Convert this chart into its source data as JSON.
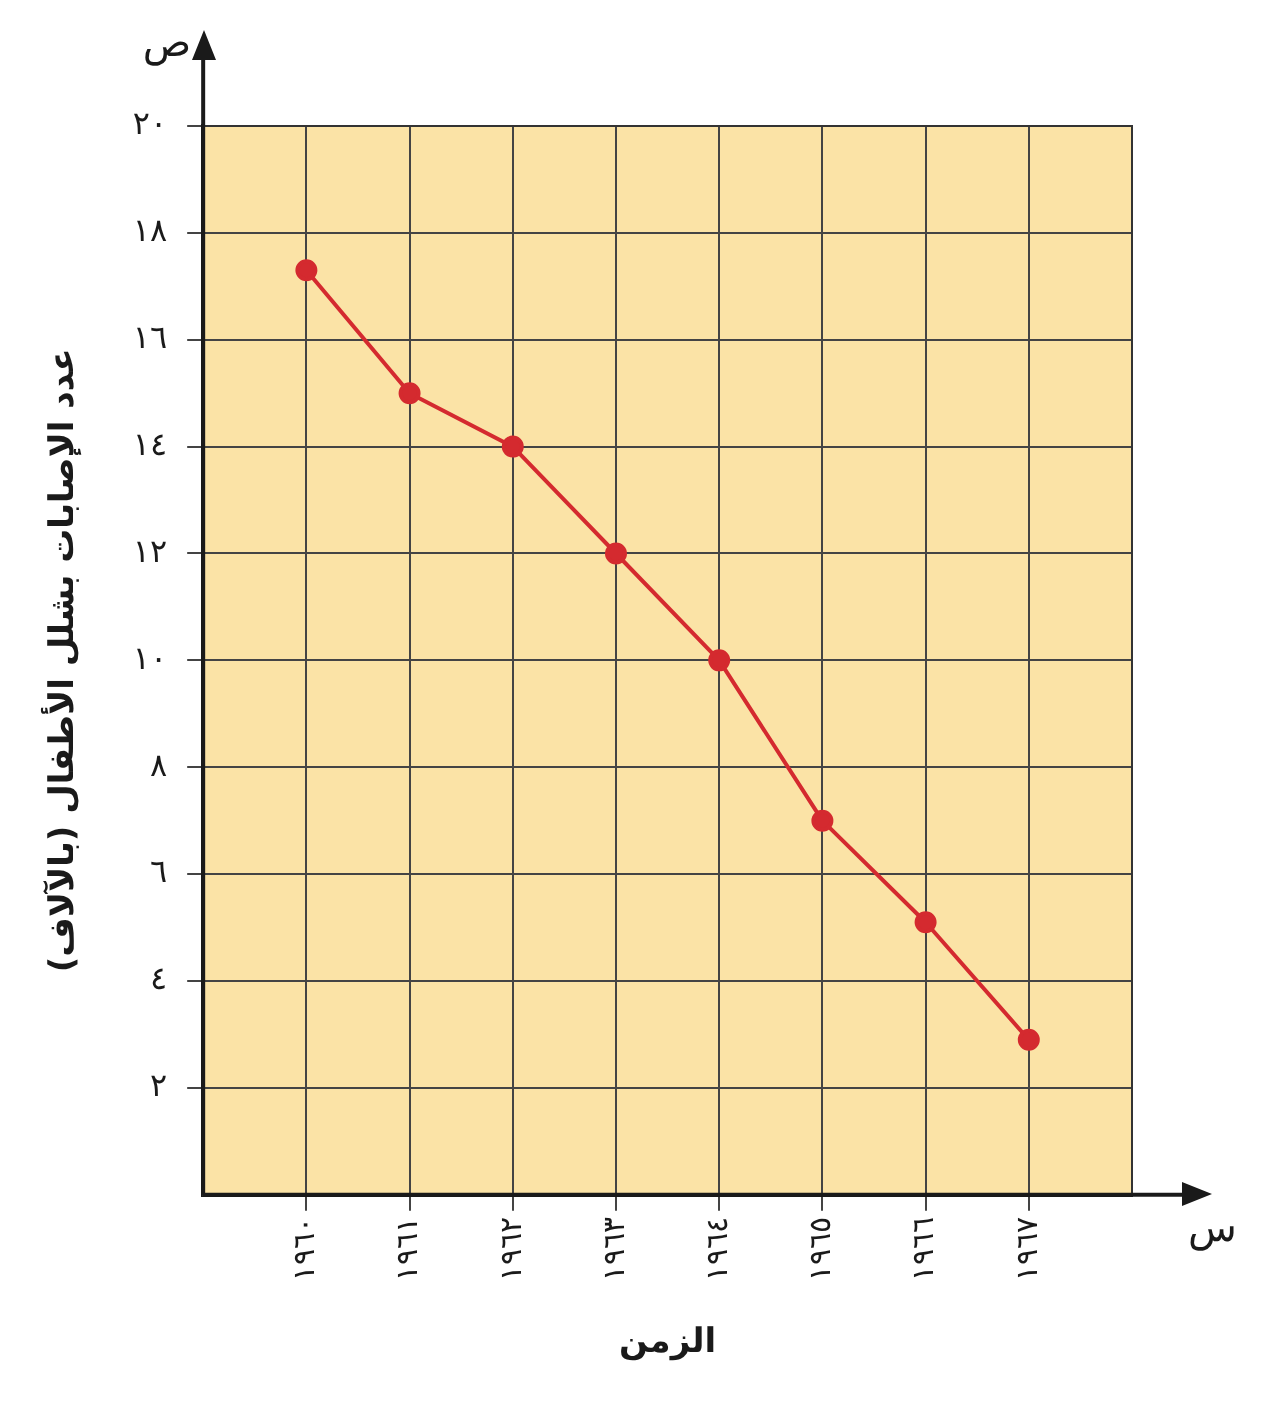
{
  "chart_data": {
    "type": "line",
    "xlabel": "الزمن",
    "ylabel": "عدد الإصابات بشلل الأطفال (بالآلاف)",
    "categories": [
      "١٩٦٠",
      "١٩٦١",
      "١٩٦٢",
      "١٩٦٣",
      "١٩٦٤",
      "١٩٦٥",
      "١٩٦٦",
      "١٩٦٧"
    ],
    "series": [
      {
        "color": "#d42a2f",
        "values": [
          17.3,
          15,
          14,
          12,
          10,
          7,
          5.1,
          2.9
        ]
      }
    ],
    "ylim": [
      0,
      20
    ],
    "yticks": [
      {
        "value": 2,
        "label": "٢"
      },
      {
        "value": 4,
        "label": "٤"
      },
      {
        "value": 6,
        "label": "٦"
      },
      {
        "value": 8,
        "label": "٨"
      },
      {
        "value": 10,
        "label": "١٠"
      },
      {
        "value": 12,
        "label": "١٢"
      },
      {
        "value": 14,
        "label": "١٤"
      },
      {
        "value": 16,
        "label": "١٦"
      },
      {
        "value": 18,
        "label": "١٨"
      },
      {
        "value": 20,
        "label": "٢٠"
      }
    ],
    "annotations": [
      "ص",
      "س"
    ],
    "grid": true,
    "marker": "circle",
    "line_style": "solid",
    "legend": false
  }
}
